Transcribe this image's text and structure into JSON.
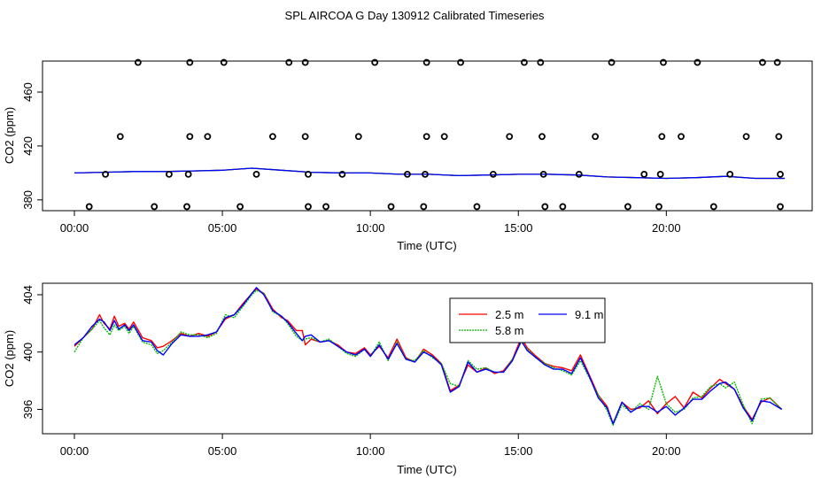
{
  "title": "SPL AIRCOA G  Day 130912  Calibrated Timeseries",
  "chart_data": [
    {
      "type": "scatter",
      "xlabel": "Time (UTC)",
      "ylabel": "CO2 (ppm)",
      "xlim": [
        0,
        24
      ],
      "ylim": [
        372,
        483
      ],
      "x_ticks": [
        0,
        5,
        10,
        15,
        20
      ],
      "x_tick_labels": [
        "00:00",
        "05:00",
        "10:00",
        "15:00",
        "20:00"
      ],
      "y_ticks": [
        380,
        420,
        460
      ],
      "y_tick_labels": [
        "380",
        "420",
        "460"
      ],
      "points": [
        {
          "x": 0.5,
          "y": 375
        },
        {
          "x": 1.05,
          "y": 399
        },
        {
          "x": 1.55,
          "y": 427
        },
        {
          "x": 2.15,
          "y": 482
        },
        {
          "x": 2.7,
          "y": 375
        },
        {
          "x": 3.2,
          "y": 399
        },
        {
          "x": 3.8,
          "y": 375
        },
        {
          "x": 3.85,
          "y": 399
        },
        {
          "x": 3.9,
          "y": 427
        },
        {
          "x": 3.9,
          "y": 482
        },
        {
          "x": 4.5,
          "y": 427
        },
        {
          "x": 5.05,
          "y": 482
        },
        {
          "x": 5.6,
          "y": 375
        },
        {
          "x": 6.15,
          "y": 399
        },
        {
          "x": 6.7,
          "y": 427
        },
        {
          "x": 7.25,
          "y": 482
        },
        {
          "x": 7.8,
          "y": 482
        },
        {
          "x": 7.8,
          "y": 427
        },
        {
          "x": 7.9,
          "y": 399
        },
        {
          "x": 7.9,
          "y": 375
        },
        {
          "x": 8.5,
          "y": 375
        },
        {
          "x": 9.05,
          "y": 399
        },
        {
          "x": 9.6,
          "y": 427
        },
        {
          "x": 10.15,
          "y": 482
        },
        {
          "x": 10.7,
          "y": 375
        },
        {
          "x": 11.25,
          "y": 399
        },
        {
          "x": 11.8,
          "y": 375
        },
        {
          "x": 11.85,
          "y": 399
        },
        {
          "x": 11.9,
          "y": 427
        },
        {
          "x": 11.9,
          "y": 482
        },
        {
          "x": 12.5,
          "y": 427
        },
        {
          "x": 13.05,
          "y": 482
        },
        {
          "x": 13.6,
          "y": 375
        },
        {
          "x": 14.15,
          "y": 399
        },
        {
          "x": 14.7,
          "y": 427
        },
        {
          "x": 15.2,
          "y": 482
        },
        {
          "x": 15.75,
          "y": 482
        },
        {
          "x": 15.8,
          "y": 427
        },
        {
          "x": 15.85,
          "y": 399
        },
        {
          "x": 15.9,
          "y": 375
        },
        {
          "x": 16.5,
          "y": 375
        },
        {
          "x": 17.05,
          "y": 399
        },
        {
          "x": 17.6,
          "y": 427
        },
        {
          "x": 18.15,
          "y": 482
        },
        {
          "x": 18.7,
          "y": 375
        },
        {
          "x": 19.25,
          "y": 399
        },
        {
          "x": 19.75,
          "y": 375
        },
        {
          "x": 19.8,
          "y": 399
        },
        {
          "x": 19.85,
          "y": 427
        },
        {
          "x": 19.9,
          "y": 482
        },
        {
          "x": 20.5,
          "y": 427
        },
        {
          "x": 21.05,
          "y": 482
        },
        {
          "x": 21.6,
          "y": 375
        },
        {
          "x": 22.15,
          "y": 399
        },
        {
          "x": 22.7,
          "y": 427
        },
        {
          "x": 23.25,
          "y": 482
        },
        {
          "x": 23.75,
          "y": 482
        },
        {
          "x": 23.8,
          "y": 427
        },
        {
          "x": 23.85,
          "y": 399
        },
        {
          "x": 23.85,
          "y": 375
        }
      ],
      "series": [
        {
          "name": "2.5 m",
          "color": "#ff0000",
          "x": [
            0,
            1,
            2,
            3,
            4,
            5,
            6,
            7,
            8,
            9,
            10,
            11,
            12,
            13,
            14,
            15,
            16,
            17,
            18,
            19,
            20,
            21,
            22,
            23,
            24
          ],
          "values": [
            400,
            400.5,
            401,
            401,
            401.5,
            402,
            403.5,
            402,
            400.5,
            400,
            400,
            399,
            399,
            398,
            398.5,
            399,
            399,
            398.5,
            397,
            396.5,
            396,
            396.5,
            397.5,
            396,
            396
          ]
        },
        {
          "name": "5.8 m",
          "color": "#00bb00",
          "x": [
            0,
            1,
            2,
            3,
            4,
            5,
            6,
            7,
            8,
            9,
            10,
            11,
            12,
            13,
            14,
            15,
            16,
            17,
            18,
            19,
            20,
            21,
            22,
            23,
            24
          ],
          "values": [
            400,
            400.5,
            401,
            401,
            401.5,
            402,
            403.5,
            402,
            400.5,
            400,
            400,
            399,
            399,
            398,
            398.5,
            399,
            399,
            398.5,
            397,
            396.5,
            396,
            396.5,
            397.5,
            396,
            396
          ]
        },
        {
          "name": "9.1 m",
          "color": "#0000ff",
          "x": [
            0,
            1,
            2,
            3,
            4,
            5,
            6,
            7,
            8,
            9,
            10,
            11,
            12,
            13,
            14,
            15,
            16,
            17,
            18,
            19,
            20,
            21,
            22,
            23,
            24
          ],
          "values": [
            400,
            400.5,
            401,
            401,
            401.5,
            402,
            403.5,
            402,
            400.5,
            400,
            400,
            399,
            399,
            398,
            398.5,
            399,
            399,
            398.5,
            397,
            396.5,
            396,
            396.5,
            397.5,
            396,
            396
          ]
        }
      ]
    },
    {
      "type": "line",
      "xlabel": "Time (UTC)",
      "ylabel": "CO2 (ppm)",
      "xlim": [
        0,
        24
      ],
      "ylim": [
        394.3,
        404.8
      ],
      "x_ticks": [
        0,
        5,
        10,
        15,
        20
      ],
      "x_tick_labels": [
        "00:00",
        "05:00",
        "10:00",
        "15:00",
        "20:00"
      ],
      "y_ticks": [
        396,
        400,
        404
      ],
      "y_tick_labels": [
        "396",
        "400",
        "404"
      ],
      "legend": {
        "position": "top-center",
        "entries": [
          "2.5 m",
          "5.8 m",
          "9.1 m"
        ]
      },
      "series": [
        {
          "name": "2.5 m",
          "color": "#ff0000",
          "x": [
            0,
            0.3,
            0.6,
            0.85,
            1.0,
            1.2,
            1.35,
            1.5,
            1.7,
            1.85,
            2.0,
            2.3,
            2.6,
            2.8,
            3.0,
            3.3,
            3.6,
            3.9,
            4.2,
            4.5,
            4.8,
            5.1,
            5.4,
            5.7,
            6.0,
            6.15,
            6.4,
            6.7,
            7.0,
            7.2,
            7.5,
            7.7,
            7.8,
            8.0,
            8.3,
            8.6,
            8.9,
            9.2,
            9.5,
            9.8,
            10.0,
            10.3,
            10.6,
            10.9,
            11.2,
            11.5,
            11.8,
            12.1,
            12.4,
            12.7,
            13.0,
            13.3,
            13.6,
            13.9,
            14.2,
            14.5,
            14.8,
            15.1,
            15.3,
            15.6,
            15.9,
            16.2,
            16.5,
            16.8,
            17.1,
            17.4,
            17.7,
            18.0,
            18.2,
            18.5,
            18.8,
            19.1,
            19.4,
            19.7,
            20.0,
            20.3,
            20.6,
            20.9,
            21.2,
            21.5,
            21.8,
            22.0,
            22.3,
            22.6,
            22.9,
            23.2,
            23.5,
            23.9
          ],
          "values": [
            400.4,
            401.0,
            401.6,
            402.6,
            402.0,
            401.6,
            402.5,
            401.8,
            402.0,
            401.6,
            402.1,
            401.0,
            400.8,
            400.3,
            400.4,
            400.8,
            401.3,
            401.1,
            401.3,
            401.1,
            401.4,
            402.3,
            402.6,
            403.4,
            404.1,
            404.4,
            404.1,
            403.0,
            402.4,
            402.2,
            401.5,
            401.5,
            400.5,
            400.9,
            400.7,
            400.8,
            400.5,
            400.0,
            399.9,
            400.3,
            399.8,
            400.4,
            399.6,
            400.9,
            399.6,
            399.3,
            400.2,
            399.8,
            399.2,
            397.3,
            397.7,
            399.1,
            398.6,
            398.9,
            398.5,
            398.7,
            399.5,
            401.0,
            400.3,
            399.7,
            399.2,
            399.0,
            398.9,
            398.7,
            399.8,
            398.4,
            397.0,
            396.2,
            395.0,
            396.5,
            396.0,
            396.1,
            396.6,
            395.7,
            396.4,
            396.9,
            396.1,
            397.2,
            396.8,
            397.5,
            398.1,
            397.8,
            397.4,
            396.2,
            395.3,
            396.5,
            396.8,
            396.0
          ]
        },
        {
          "name": "5.8 m",
          "color": "#00bb00",
          "x": [
            0,
            0.3,
            0.6,
            0.85,
            1.0,
            1.2,
            1.35,
            1.5,
            1.7,
            1.85,
            2.0,
            2.3,
            2.6,
            2.8,
            3.0,
            3.3,
            3.6,
            3.9,
            4.2,
            4.5,
            4.8,
            5.1,
            5.4,
            5.7,
            6.0,
            6.15,
            6.4,
            6.7,
            7.0,
            7.2,
            7.5,
            7.7,
            7.8,
            8.0,
            8.3,
            8.6,
            8.9,
            9.2,
            9.5,
            9.8,
            10.0,
            10.3,
            10.6,
            10.9,
            11.2,
            11.5,
            11.8,
            12.1,
            12.4,
            12.7,
            13.0,
            13.3,
            13.6,
            13.9,
            14.2,
            14.5,
            14.8,
            15.1,
            15.3,
            15.6,
            15.9,
            16.2,
            16.5,
            16.8,
            17.1,
            17.4,
            17.7,
            18.0,
            18.2,
            18.5,
            18.8,
            19.1,
            19.4,
            19.7,
            20.0,
            20.3,
            20.6,
            20.9,
            21.2,
            21.5,
            21.8,
            22.0,
            22.3,
            22.6,
            22.9,
            23.2,
            23.5,
            23.9
          ],
          "values": [
            400.0,
            401.0,
            401.6,
            402.2,
            401.7,
            401.2,
            401.9,
            401.5,
            401.8,
            401.3,
            401.8,
            400.7,
            400.5,
            399.9,
            400.1,
            400.7,
            401.4,
            401.2,
            401.2,
            401.0,
            401.3,
            402.6,
            402.4,
            403.2,
            404.0,
            404.3,
            404.1,
            402.8,
            402.5,
            402.0,
            401.1,
            400.8,
            400.9,
            401.0,
            400.7,
            400.9,
            400.4,
            399.9,
            399.7,
            400.2,
            399.7,
            400.7,
            399.4,
            400.7,
            399.5,
            399.4,
            400.1,
            399.6,
            399.2,
            397.8,
            397.6,
            399.4,
            398.8,
            398.9,
            398.6,
            398.6,
            399.5,
            400.7,
            400.2,
            399.6,
            399.2,
            398.9,
            398.7,
            398.4,
            399.4,
            398.2,
            397.0,
            395.9,
            394.9,
            396.3,
            395.8,
            396.4,
            396.0,
            398.3,
            396.4,
            395.8,
            396.0,
            396.8,
            396.9,
            397.6,
            397.8,
            397.5,
            397.9,
            396.3,
            395.0,
            396.7,
            396.8,
            396.0
          ]
        },
        {
          "name": "9.1 m",
          "color": "#0000ff",
          "x": [
            0,
            0.3,
            0.6,
            0.85,
            1.0,
            1.2,
            1.35,
            1.5,
            1.7,
            1.85,
            2.0,
            2.3,
            2.6,
            2.8,
            3.0,
            3.3,
            3.6,
            3.9,
            4.2,
            4.5,
            4.8,
            5.1,
            5.4,
            5.7,
            6.0,
            6.15,
            6.4,
            6.7,
            7.0,
            7.2,
            7.5,
            7.7,
            7.8,
            8.0,
            8.3,
            8.6,
            8.9,
            9.2,
            9.5,
            9.8,
            10.0,
            10.3,
            10.6,
            10.9,
            11.2,
            11.5,
            11.8,
            12.1,
            12.4,
            12.7,
            13.0,
            13.3,
            13.6,
            13.9,
            14.2,
            14.5,
            14.8,
            15.1,
            15.3,
            15.6,
            15.9,
            16.2,
            16.5,
            16.8,
            17.1,
            17.4,
            17.7,
            18.0,
            18.2,
            18.5,
            18.8,
            19.1,
            19.4,
            19.7,
            20.0,
            20.3,
            20.6,
            20.9,
            21.2,
            21.5,
            21.8,
            22.0,
            22.3,
            22.6,
            22.9,
            23.2,
            23.5,
            23.9
          ],
          "values": [
            400.5,
            401.0,
            401.8,
            402.3,
            402.1,
            401.5,
            402.2,
            401.6,
            401.9,
            401.5,
            401.9,
            400.8,
            400.7,
            400.1,
            399.8,
            400.6,
            401.2,
            401.1,
            401.1,
            401.2,
            401.4,
            402.4,
            402.6,
            403.3,
            404.1,
            404.5,
            404.0,
            402.9,
            402.5,
            402.1,
            401.3,
            400.8,
            401.1,
            401.2,
            400.7,
            400.8,
            400.4,
            400.0,
            399.8,
            400.2,
            399.7,
            400.5,
            399.5,
            400.6,
            399.5,
            399.3,
            400.0,
            399.7,
            399.1,
            397.2,
            397.6,
            399.3,
            398.6,
            398.8,
            398.6,
            398.6,
            399.4,
            400.8,
            400.1,
            399.6,
            399.1,
            398.8,
            398.8,
            398.5,
            399.6,
            398.3,
            396.8,
            396.1,
            395.0,
            396.5,
            395.8,
            396.2,
            396.2,
            395.8,
            396.2,
            395.6,
            396.1,
            396.7,
            396.7,
            397.3,
            397.8,
            397.9,
            397.4,
            396.1,
            395.2,
            396.6,
            396.5,
            396.0
          ]
        }
      ]
    }
  ]
}
